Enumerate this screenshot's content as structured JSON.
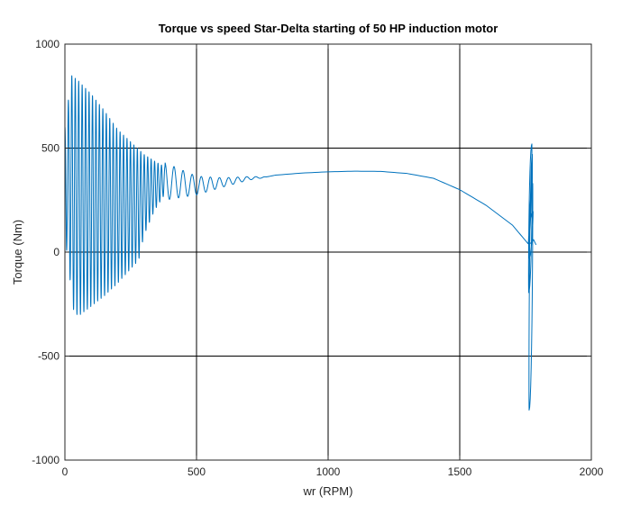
{
  "chart_data": {
    "type": "line",
    "title": "Torque vs speed Star-Delta starting of 50 HP induction motor",
    "xlabel": "wr (RPM)",
    "ylabel": "Torque (Nm)",
    "xlim": [
      0,
      2000
    ],
    "ylim": [
      -1000,
      1000
    ],
    "xticks": [
      0,
      500,
      1000,
      1500,
      2000
    ],
    "yticks": [
      -1000,
      -500,
      0,
      500,
      1000
    ],
    "xtick_labels": [
      "0",
      "500",
      "1000",
      "1500",
      "2000"
    ],
    "ytick_labels": [
      "-1000",
      "-500",
      "0",
      "500",
      "1000"
    ],
    "grid": true,
    "series": [
      {
        "name": "Torque",
        "color": "#0072BD",
        "segments": [
          {
            "kind": "star-start-oscillation",
            "x_start": 0,
            "x_end": 380,
            "peak_envelope": [
              [
                0,
                600
              ],
              [
                25,
                850
              ],
              [
                50,
                825
              ],
              [
                100,
                760
              ],
              [
                150,
                680
              ],
              [
                200,
                590
              ],
              [
                250,
                530
              ],
              [
                300,
                470
              ],
              [
                350,
                430
              ],
              [
                380,
                410
              ]
            ],
            "trough_envelope": [
              [
                0,
                80
              ],
              [
                35,
                -300
              ],
              [
                60,
                -300
              ],
              [
                100,
                -260
              ],
              [
                150,
                -210
              ],
              [
                200,
                -150
              ],
              [
                250,
                -80
              ],
              [
                280,
                -40
              ],
              [
                300,
                80
              ],
              [
                340,
                200
              ],
              [
                380,
                280
              ]
            ],
            "cycles": 29
          },
          {
            "kind": "damped-settling",
            "x_start": 380,
            "x_end": 760,
            "center": [
              [
                380,
                340
              ],
              [
                500,
                320
              ],
              [
                600,
                335
              ],
              [
                700,
                355
              ],
              [
                760,
                360
              ]
            ],
            "amplitude": [
              [
                380,
                90
              ],
              [
                500,
                45
              ],
              [
                600,
                22
              ],
              [
                700,
                8
              ],
              [
                760,
                2
              ]
            ],
            "cycles": 11
          },
          {
            "kind": "smooth-curve",
            "points": [
              [
                760,
                360
              ],
              [
                800,
                370
              ],
              [
                900,
                380
              ],
              [
                1000,
                386
              ],
              [
                1100,
                389
              ],
              [
                1200,
                388
              ],
              [
                1300,
                378
              ],
              [
                1400,
                355
              ],
              [
                1500,
                300
              ],
              [
                1600,
                225
              ],
              [
                1700,
                130
              ],
              [
                1760,
                40
              ]
            ]
          },
          {
            "kind": "delta-switch-transient",
            "x_center": 1770,
            "peaks": [
              520,
              470,
              330,
              195,
              60
            ],
            "troughs": [
              -195,
              -760,
              -30,
              40
            ],
            "end": [
              1790,
              35
            ]
          }
        ]
      }
    ]
  }
}
